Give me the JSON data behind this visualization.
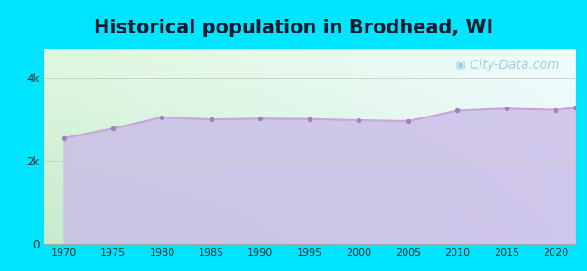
{
  "title": "Historical population in Brodhead, WI",
  "years": [
    1970,
    1975,
    1980,
    1985,
    1990,
    1995,
    2000,
    2005,
    2010,
    2015,
    2020,
    2022
  ],
  "population": [
    2550,
    2780,
    3050,
    3000,
    3020,
    3010,
    2980,
    2960,
    3210,
    3260,
    3230,
    3280
  ],
  "line_color": "#c4a8d8",
  "fill_color_top": "#c9b8e8",
  "fill_color_bottom": "#c9b8e8",
  "fill_alpha": 0.75,
  "marker_color": "#a080c0",
  "marker_size": 15,
  "bg_outer": "#00e5ff",
  "bg_plot_tl": "#e8f5e9",
  "bg_plot_tr": "#f0f8ff",
  "bg_plot_bl": "#d4ecd4",
  "bg_plot_br": "#e8f5f5",
  "grid_color": "#cccccc",
  "yticks": [
    0,
    2000,
    4000
  ],
  "ytick_labels": [
    "0",
    "2k",
    "4k"
  ],
  "ylim": [
    0,
    4700
  ],
  "xlim": [
    1968,
    2022
  ],
  "xticks": [
    1970,
    1975,
    1980,
    1985,
    1990,
    1995,
    2000,
    2005,
    2010,
    2015,
    2020
  ],
  "title_fontsize": 15,
  "title_color": "#1a1a2e",
  "watermark_text": "◉ City-Data.com",
  "watermark_color": "#88bbcc",
  "watermark_alpha": 0.7,
  "watermark_fontsize": 10
}
